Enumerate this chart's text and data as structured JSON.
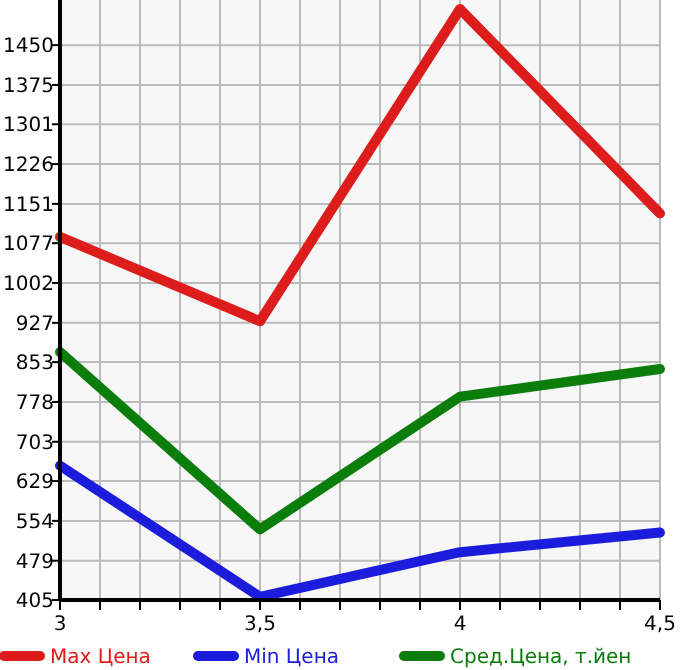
{
  "chart_data": {
    "type": "line",
    "x": [
      3,
      3.5,
      4,
      4.5
    ],
    "series": [
      {
        "name": "Max Цена",
        "color": "#dd1c1c",
        "values": [
          1089,
          930,
          1518,
          1133
        ]
      },
      {
        "name": "Min Цена",
        "color": "#1c1cdd",
        "values": [
          658,
          411,
          495,
          532
        ]
      },
      {
        "name": "Сред.Цена, т.йен",
        "color": "#0a7d0a",
        "values": [
          872,
          538,
          788,
          840
        ]
      }
    ],
    "xlim": [
      3,
      4.5
    ],
    "xticks": [
      3,
      {
        "value": 3.1,
        "label": null
      },
      {
        "value": 3.2,
        "label": null
      },
      {
        "value": 3.3,
        "label": null
      },
      {
        "value": 3.4,
        "label": null
      },
      {
        "value": 3.5,
        "label": "3,5"
      },
      {
        "value": 3.6,
        "label": null
      },
      {
        "value": 3.7,
        "label": null
      },
      {
        "value": 3.8,
        "label": null
      },
      {
        "value": 3.9,
        "label": null
      },
      4,
      {
        "value": 4.1,
        "label": null
      },
      {
        "value": 4.2,
        "label": null
      },
      {
        "value": 4.3,
        "label": null
      },
      {
        "value": 4.4,
        "label": null
      },
      {
        "value": 4.5,
        "label": "4,5"
      }
    ],
    "ylim": [
      405,
      1535
    ],
    "yticks": [
      405,
      479,
      554,
      629,
      703,
      778,
      853,
      927,
      1002,
      1077,
      1151,
      1226,
      1301,
      1375,
      1450
    ],
    "grid": true,
    "legend": "bottom",
    "marker": "none",
    "line_style": "solid"
  }
}
